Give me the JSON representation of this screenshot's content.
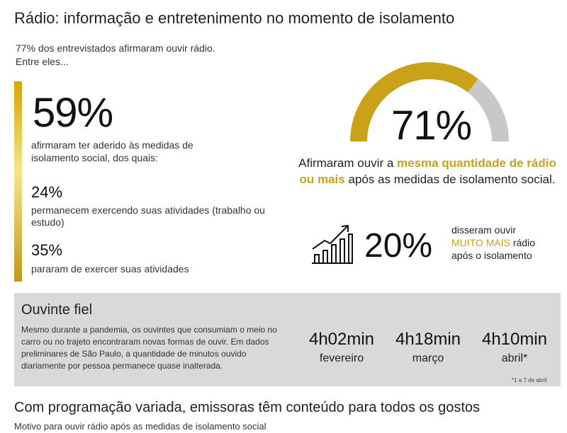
{
  "title": "Rádio: informação e entretenimento no momento de isolamento",
  "intro": {
    "line1": "77% dos entrevistados afirmaram ouvir rádio.",
    "line2": "Entre eles..."
  },
  "left": {
    "big_value": "59%",
    "big_text": "afirmaram ter aderido às medidas de isolamento social, dos quais:",
    "items": [
      {
        "value": "24%",
        "text": "permanecem exercendo suas atividades (trabalho ou estudo)"
      },
      {
        "value": "35%",
        "text": "pararam de exercer suas atividades"
      }
    ]
  },
  "gauge": {
    "value": "71%",
    "fraction": 0.71,
    "text_before": "Afirmaram ouvir a ",
    "text_highlight": "mesma quantidade de rádio ou mais",
    "text_after": " após as medidas de isolamento social.",
    "color_fill": "#c9a21a",
    "color_rest": "#c8c8c8"
  },
  "growth": {
    "icon": "growth-bars-icon",
    "value": "20%",
    "line1": "disseram ouvir",
    "highlight": "MUITO MAIS",
    "line2_rest": " rádio",
    "line3": "após o isolamento"
  },
  "fiel": {
    "title": "Ouvinte fiel",
    "text": "Mesmo durante a pandemia, os ouvintes que consumiam o meio no carro ou no trajeto encontraram novas formas de ouvir. Em dados preliminares de São Paulo, a quantidade de minutos ouvido diariamente por pessoa permanece quase inalterada.",
    "times": [
      {
        "value": "4h02min",
        "month": "fevereiro"
      },
      {
        "value": "4h18min",
        "month": "março"
      },
      {
        "value": "4h10min",
        "month": "abril*"
      }
    ],
    "footnote": "*1 a 7 de abril"
  },
  "section2": {
    "title": "Com programação variada, emissoras têm conteúdo para todos os gostos",
    "subtitle": "Motivo para ouvir rádio após as medidas de isolamento social"
  },
  "colors": {
    "accent_gold": "#c9a21a",
    "panel_gray": "#d9d9d9"
  }
}
